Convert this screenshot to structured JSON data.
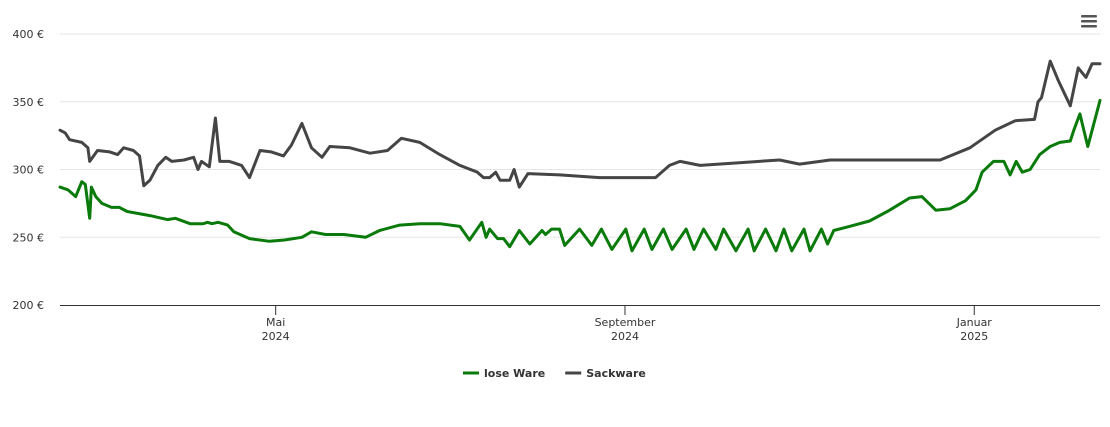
{
  "chart_data": {
    "type": "line",
    "xlim": [
      2.53,
      14.44
    ],
    "xticks": [
      {
        "value": 5,
        "label": "Mai 2024"
      },
      {
        "value": 9,
        "label": "September 2024"
      },
      {
        "value": 13,
        "label": "Januar 2025"
      }
    ],
    "ylim": [
      200,
      400
    ],
    "yticks": [
      {
        "value": 200,
        "label": "200 €"
      },
      {
        "value": 250,
        "label": "250 €"
      },
      {
        "value": 300,
        "label": "300 €"
      },
      {
        "value": 350,
        "label": "350 €"
      },
      {
        "value": 400,
        "label": "400 €"
      }
    ],
    "grid": true,
    "legend": "bottom",
    "series": [
      {
        "name": "lose Ware",
        "color": "#0a7a0a",
        "x": [
          2.53,
          2.62,
          2.71,
          2.78,
          2.82,
          2.87,
          2.89,
          2.94,
          3.01,
          3.12,
          3.21,
          3.3,
          3.56,
          3.76,
          3.85,
          4.02,
          4.17,
          4.22,
          4.27,
          4.34,
          4.45,
          4.52,
          4.7,
          4.93,
          5.1,
          5.3,
          5.41,
          5.57,
          5.78,
          6.03,
          6.19,
          6.42,
          6.65,
          6.88,
          7.11,
          7.22,
          7.36,
          7.41,
          7.45,
          7.54,
          7.61,
          7.68,
          7.79,
          7.91,
          8.05,
          8.09,
          8.16,
          8.25,
          8.31,
          8.48,
          8.62,
          8.73,
          8.85,
          9.01,
          9.08,
          9.22,
          9.31,
          9.44,
          9.54,
          9.7,
          9.79,
          9.9,
          10.04,
          10.13,
          10.27,
          10.41,
          10.48,
          10.61,
          10.73,
          10.82,
          10.91,
          11.05,
          11.12,
          11.25,
          11.32,
          11.39,
          11.57,
          11.8,
          12.03,
          12.26,
          12.4,
          12.56,
          12.72,
          12.9,
          13.02,
          13.09,
          13.22,
          13.34,
          13.41,
          13.48,
          13.55,
          13.64,
          13.75,
          13.87,
          13.98,
          14.1,
          14.14,
          14.21,
          14.3,
          14.44
        ],
        "values": [
          287,
          285,
          280,
          291,
          289,
          264,
          287,
          280,
          275,
          272,
          272,
          269,
          266,
          263,
          264,
          260,
          260,
          261,
          260,
          261,
          259,
          254,
          249,
          247,
          248,
          250,
          254,
          252,
          252,
          250,
          255,
          259,
          260,
          260,
          258,
          248,
          261,
          250,
          256,
          249,
          249,
          243,
          255,
          245,
          255,
          252,
          256,
          256,
          244,
          256,
          244,
          256,
          241,
          256,
          240,
          256,
          241,
          256,
          241,
          256,
          241,
          256,
          241,
          256,
          240,
          256,
          240,
          256,
          240,
          256,
          240,
          256,
          240,
          256,
          245,
          255,
          258,
          262,
          270,
          279,
          280,
          270,
          271,
          277,
          285,
          298,
          306,
          306,
          296,
          306,
          298,
          300,
          311,
          317,
          320,
          321,
          329,
          341,
          317,
          351
        ]
      },
      {
        "name": "Sackware",
        "color": "#454545",
        "x": [
          2.53,
          2.59,
          2.64,
          2.78,
          2.85,
          2.87,
          2.96,
          3.1,
          3.19,
          3.26,
          3.37,
          3.44,
          3.49,
          3.56,
          3.65,
          3.74,
          3.81,
          3.95,
          4.06,
          4.11,
          4.15,
          4.24,
          4.31,
          4.36,
          4.47,
          4.61,
          4.7,
          4.82,
          4.95,
          5.09,
          5.18,
          5.3,
          5.41,
          5.53,
          5.62,
          5.85,
          6.08,
          6.28,
          6.44,
          6.65,
          6.88,
          7.11,
          7.31,
          7.38,
          7.45,
          7.52,
          7.57,
          7.68,
          7.73,
          7.79,
          7.89,
          8.25,
          8.71,
          9.35,
          9.51,
          9.63,
          9.86,
          10.31,
          10.77,
          11.0,
          11.35,
          12.15,
          12.61,
          12.95,
          13.24,
          13.47,
          13.69,
          13.73,
          13.77,
          13.87,
          13.96,
          14.1,
          14.19,
          14.28,
          14.35,
          14.44
        ],
        "values": [
          329,
          327,
          322,
          320,
          316,
          306,
          314,
          313,
          311,
          316,
          314,
          310,
          288,
          292,
          303,
          309,
          306,
          307,
          309,
          300,
          306,
          302,
          338,
          306,
          306,
          303,
          294,
          314,
          313,
          310,
          318,
          334,
          316,
          309,
          317,
          316,
          312,
          314,
          323,
          320,
          311,
          303,
          298,
          294,
          294,
          298,
          292,
          292,
          300,
          287,
          297,
          296,
          294,
          294,
          303,
          306,
          303,
          305,
          307,
          304,
          307,
          307,
          307,
          316,
          329,
          336,
          337,
          350,
          353,
          380,
          366,
          347,
          375,
          368,
          378,
          378
        ]
      }
    ]
  }
}
